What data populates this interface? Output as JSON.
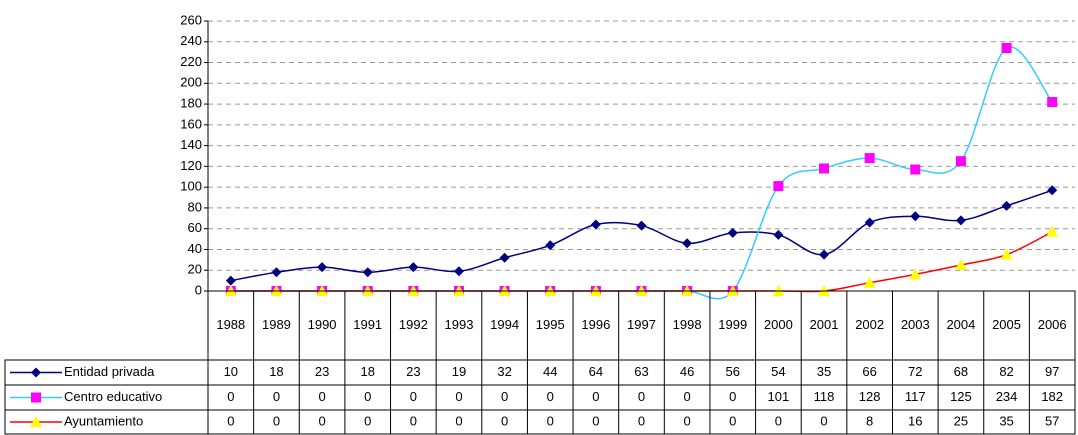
{
  "chart_data": {
    "type": "line",
    "categories": [
      "1988",
      "1989",
      "1990",
      "1991",
      "1992",
      "1993",
      "1994",
      "1995",
      "1996",
      "1997",
      "1998",
      "1999",
      "2000",
      "2001",
      "2002",
      "2003",
      "2004",
      "2005",
      "2006"
    ],
    "series": [
      {
        "name": "Entidad privada",
        "color": "#000080",
        "marker": "diamond",
        "marker_color": "#000080",
        "values": [
          10,
          18,
          23,
          18,
          23,
          19,
          32,
          44,
          64,
          63,
          46,
          56,
          54,
          35,
          66,
          72,
          68,
          82,
          97
        ]
      },
      {
        "name": "Centro educativo",
        "color": "#33CCFF",
        "marker": "square",
        "marker_color": "#FF00FF",
        "values": [
          0,
          0,
          0,
          0,
          0,
          0,
          0,
          0,
          0,
          0,
          0,
          0,
          101,
          118,
          128,
          117,
          125,
          234,
          182
        ]
      },
      {
        "name": "Ayuntamiento",
        "color": "#FF0000",
        "marker": "triangle",
        "marker_color": "#FFFF00",
        "values": [
          0,
          0,
          0,
          0,
          0,
          0,
          0,
          0,
          0,
          0,
          0,
          0,
          0,
          0,
          8,
          16,
          25,
          35,
          57
        ]
      }
    ],
    "ylim": [
      0,
      260
    ],
    "yticks": [
      0,
      20,
      40,
      60,
      80,
      100,
      120,
      140,
      160,
      180,
      200,
      220,
      240,
      260
    ],
    "grid": true,
    "smooth": true
  }
}
